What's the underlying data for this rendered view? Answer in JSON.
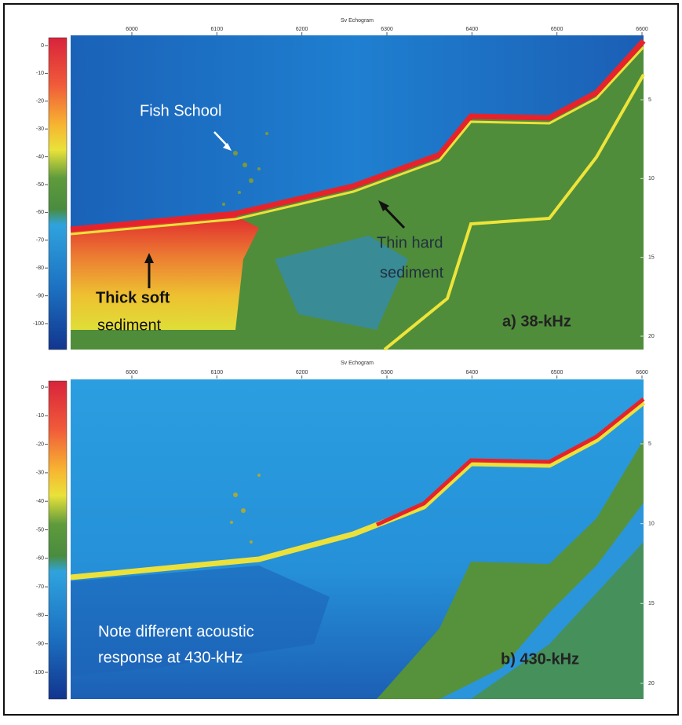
{
  "panels": [
    {
      "title": "Sv Echogram",
      "x_ticks": [
        6000,
        6100,
        6200,
        6300,
        6400,
        6500,
        6600
      ],
      "colorbar_ticks": [
        0,
        -10,
        -20,
        -30,
        -40,
        -50,
        -60,
        -70,
        -80,
        -90,
        -100
      ],
      "depth_ticks": [
        5,
        10,
        15,
        20
      ],
      "annotations": {
        "fish": "Fish School",
        "thin": [
          "Thin hard",
          "sediment"
        ],
        "thick": [
          "Thick soft",
          "sediment"
        ]
      },
      "label": "a) 38-kHz"
    },
    {
      "title": "Sv Echogram",
      "x_ticks": [
        6000,
        6100,
        6200,
        6300,
        6400,
        6500,
        6600
      ],
      "colorbar_ticks": [
        0,
        -10,
        -20,
        -30,
        -40,
        -50,
        -60,
        -70,
        -80,
        -90,
        -100
      ],
      "depth_ticks": [
        5,
        10,
        15,
        20
      ],
      "annotations": {
        "note": [
          "Note different acoustic",
          "response at 430-kHz"
        ]
      },
      "label": "b) 430-kHz"
    }
  ]
}
